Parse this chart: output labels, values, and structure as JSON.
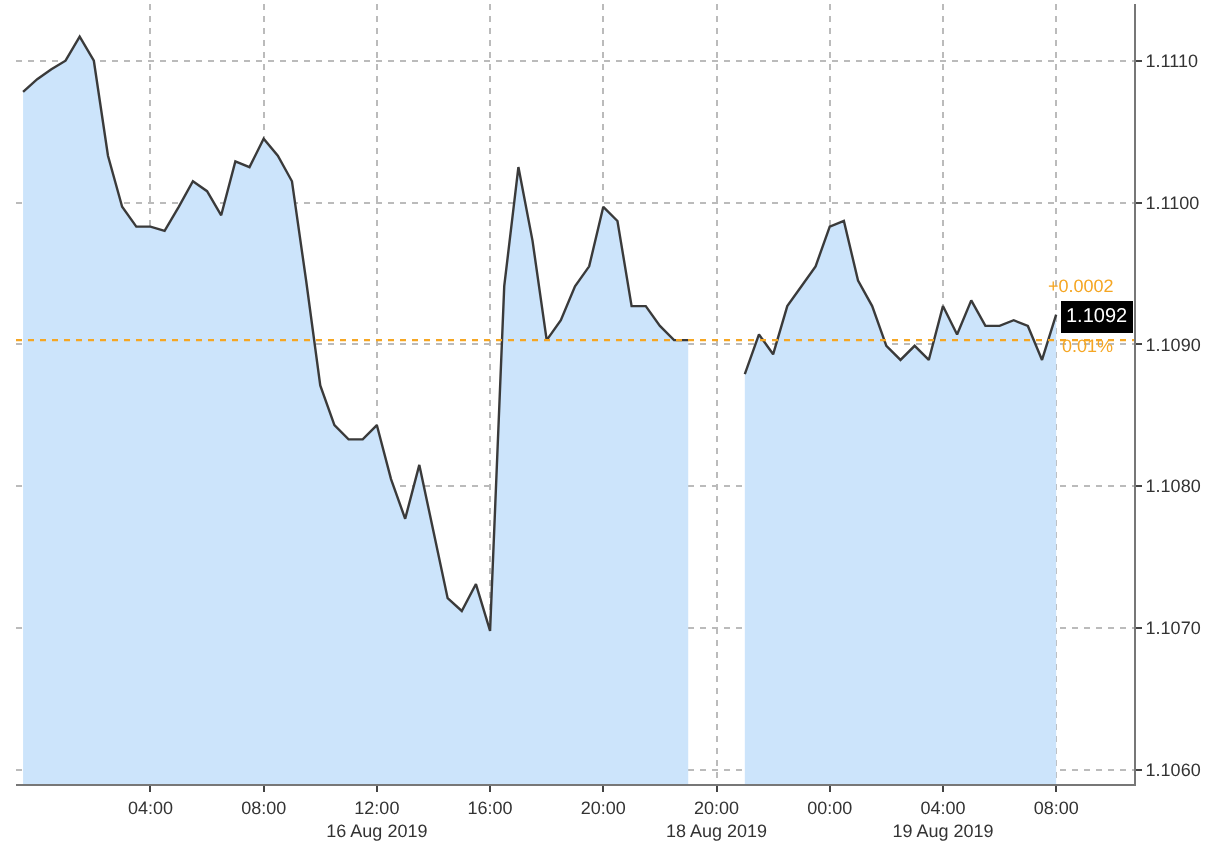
{
  "chart_data": {
    "type": "area",
    "categories": [
      null,
      null,
      null,
      null,
      null,
      null,
      null,
      null,
      null,
      "04:00",
      null,
      null,
      null,
      null,
      null,
      null,
      null,
      "08:00",
      null,
      null,
      null,
      null,
      null,
      null,
      null,
      "12:00\n16 Aug 2019",
      null,
      null,
      null,
      null,
      null,
      null,
      null,
      "16:00",
      null,
      null,
      null,
      null,
      null,
      null,
      null,
      "20:00",
      null,
      null,
      null,
      null,
      null,
      null,
      null,
      "20:00\n18 Aug 2019",
      null,
      null,
      null,
      null,
      null,
      null,
      null,
      "00:00",
      null,
      null,
      null,
      null,
      null,
      null,
      null,
      "04:00\n19 Aug 2019",
      null,
      null,
      null,
      null,
      null,
      null,
      null,
      "08:00",
      null,
      null,
      null,
      null,
      null
    ],
    "series": [
      {
        "color": "#cce4fb",
        "values": [
          1.11078,
          1.11087,
          1.11094,
          1.111,
          1.11117,
          1.111,
          1.11033,
          1.10997,
          1.10983,
          1.10983,
          1.1098,
          1.10997,
          1.11015,
          1.11008,
          1.10991,
          1.11029,
          1.11025,
          1.11045,
          1.11033,
          1.11015,
          1.10945,
          1.10871,
          1.10843,
          1.10833,
          1.10833,
          1.10843,
          1.10805,
          1.10777,
          1.10815,
          1.10768,
          1.10721,
          1.10712,
          1.10731,
          1.10698,
          1.10941,
          1.11025,
          1.10973,
          1.10903,
          1.10917,
          1.10941,
          1.10955,
          1.10997,
          1.10987,
          1.10927,
          1.10927,
          1.10913,
          1.10903,
          1.10903,
          null,
          null,
          null,
          1.10879,
          1.10907,
          1.10893,
          1.10927,
          1.10941,
          1.10955,
          1.10983,
          1.10987,
          1.10945,
          1.10927,
          1.10899,
          1.10889,
          1.10899,
          1.10889,
          1.10927,
          1.10907,
          1.10931,
          1.10913,
          1.10913,
          1.10917,
          1.10913,
          1.10889,
          1.10921,
          null,
          null,
          null,
          null,
          null
        ]
      }
    ],
    "ylim": [
      1.1059,
      1.1114
    ],
    "yticks": [
      {
        "value": 1.106,
        "label": "1.1060"
      },
      {
        "value": 1.107,
        "label": "1.1070"
      },
      {
        "value": 1.108,
        "label": "1.1080"
      },
      {
        "value": 1.109,
        "label": "1.1090"
      },
      {
        "value": 1.11,
        "label": "1.1100"
      },
      {
        "value": 1.111,
        "label": "1.1110"
      }
    ],
    "ref_lines": [
      {
        "axis": "y",
        "value": 1.10903,
        "label": null,
        "color": "#f5a623",
        "line_style": "dotted"
      }
    ],
    "annotations": [
      {
        "text": "1.1092",
        "y": 1.1092
      },
      "+0.0002",
      "0.01%"
    ],
    "grid": true,
    "legend": false,
    "line_style": "solid",
    "marker": "none"
  }
}
